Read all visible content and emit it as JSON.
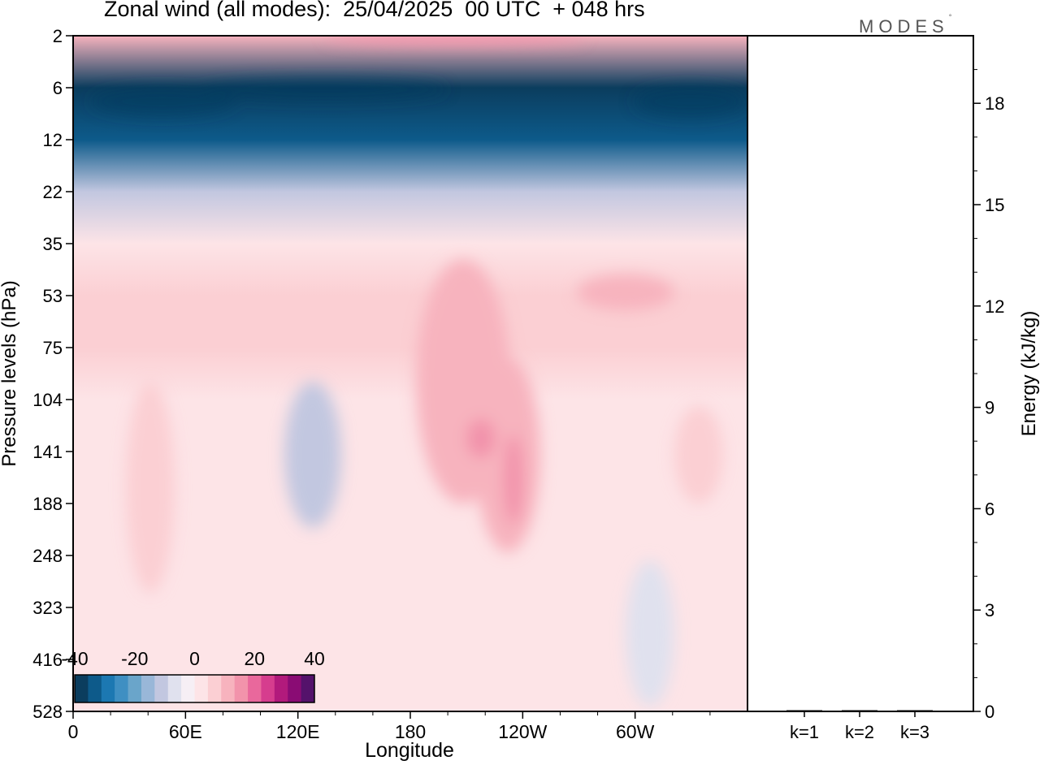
{
  "chart_data": {
    "title": "Zonal wind (all modes):  25/04/2025  00 UTC  + 048 hrs",
    "brand": "MODES",
    "brand_mark": "°",
    "colors": {
      "negative_max": "#0b3d5e",
      "zero": "#f6eff5",
      "positive_max": "#54126b"
    },
    "contour_panel": {
      "type": "heatmap",
      "xlabel": "Longitude",
      "ylabel": "Pressure levels (hPa)",
      "x_ticks": [
        "0",
        "60E",
        "120E",
        "180",
        "120W",
        "60W"
      ],
      "y_ticks": [
        "2",
        "6",
        "12",
        "22",
        "35",
        "53",
        "75",
        "104",
        "141",
        "188",
        "248",
        "323",
        "416",
        "528"
      ],
      "grid": false,
      "colorbar": {
        "labels": [
          "-40",
          "-20",
          "0",
          "20",
          "40"
        ],
        "range": [
          -40,
          40
        ],
        "colors": [
          "#0b3d5e",
          "#0d5a8a",
          "#1c78b2",
          "#3f8fc2",
          "#6aa5ca",
          "#99b7d8",
          "#c2c7e0",
          "#e0e1ee",
          "#f6eff5",
          "#fde4e7",
          "#fbcfd3",
          "#f7b3be",
          "#f293ab",
          "#e9689c",
          "#d63d8e",
          "#b21a7c",
          "#8a0c74",
          "#54126b"
        ],
        "placement": "bottom-left"
      },
      "field_profile": [
        {
          "level": "2",
          "u": 10
        },
        {
          "level": "6",
          "u": -40
        },
        {
          "level": "12",
          "u": -32
        },
        {
          "level": "22",
          "u": -12
        },
        {
          "level": "35",
          "u": 2
        },
        {
          "level": "53",
          "u": 6
        },
        {
          "level": "75",
          "u": 5
        },
        {
          "level": "104",
          "u": 3
        },
        {
          "level": "141",
          "u": 3
        },
        {
          "level": "188",
          "u": 2
        },
        {
          "level": "248",
          "u": 2
        },
        {
          "level": "323",
          "u": 1
        },
        {
          "level": "416",
          "u": 0
        },
        {
          "level": "528",
          "u": 0
        }
      ]
    },
    "energy_panel": {
      "type": "bar",
      "ylabel": "Energy (kJ/kg)",
      "ylim": [
        0,
        20
      ],
      "y_ticks": [
        "0",
        "3",
        "6",
        "9",
        "12",
        "15",
        "18"
      ],
      "categories": [
        "k=1",
        "k=2",
        "k=3"
      ],
      "values": [
        0.02,
        0.01,
        0.01
      ]
    }
  }
}
